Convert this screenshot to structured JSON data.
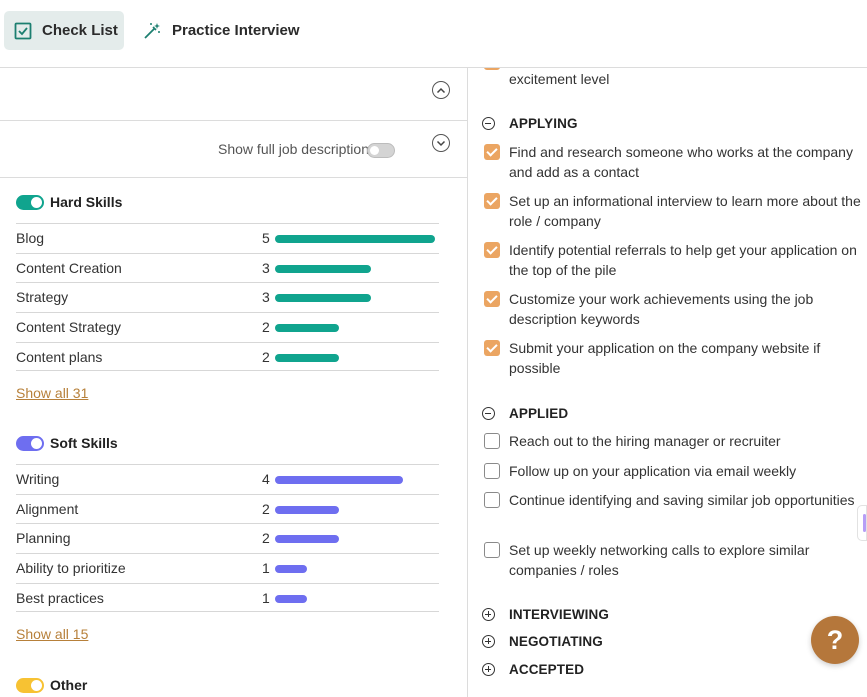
{
  "tabs": {
    "checklist": "Check List",
    "practice": "Practice Interview"
  },
  "job_description": {
    "show_full_label": "Show full job description"
  },
  "hard_skills": {
    "title": "Hard Skills",
    "color": "#10a48e",
    "max": 5,
    "items": [
      {
        "name": "Blog",
        "count": 5
      },
      {
        "name": "Content Creation",
        "count": 3
      },
      {
        "name": "Strategy",
        "count": 3
      },
      {
        "name": "Content Strategy",
        "count": 2
      },
      {
        "name": "Content plans",
        "count": 2
      }
    ],
    "show_all": "Show all 31"
  },
  "soft_skills": {
    "title": "Soft Skills",
    "color": "#6e6ef0",
    "max": 5,
    "items": [
      {
        "name": "Writing",
        "count": 4
      },
      {
        "name": "Alignment",
        "count": 2
      },
      {
        "name": "Planning",
        "count": 2
      },
      {
        "name": "Ability to prioritize",
        "count": 1
      },
      {
        "name": "Best practices",
        "count": 1
      }
    ],
    "show_all": "Show all 15"
  },
  "other": {
    "title": "Other",
    "color": "#f7c233"
  },
  "checklist": {
    "partial_top": "excitement level",
    "applying": {
      "title": "APPLYING",
      "items": [
        "Find and research someone who works at the company and add as a contact",
        "Set up an informational interview to learn more about the role / company",
        "Identify potential referrals to help get your application on the top of the pile",
        "Customize your work achievements using the job description keywords",
        "Submit your application on the company website if possible"
      ]
    },
    "applied": {
      "title": "APPLIED",
      "items": [
        "Reach out to the hiring manager or recruiter",
        "Follow up on your application via email weekly",
        "Continue identifying and saving similar job opportunities",
        "Set up weekly networking calls to explore similar companies / roles"
      ]
    },
    "interviewing": "INTERVIEWING",
    "negotiating": "NEGOTIATING",
    "accepted": "ACCEPTED"
  },
  "help": {
    "label": "?"
  },
  "accent": "#b5773b"
}
